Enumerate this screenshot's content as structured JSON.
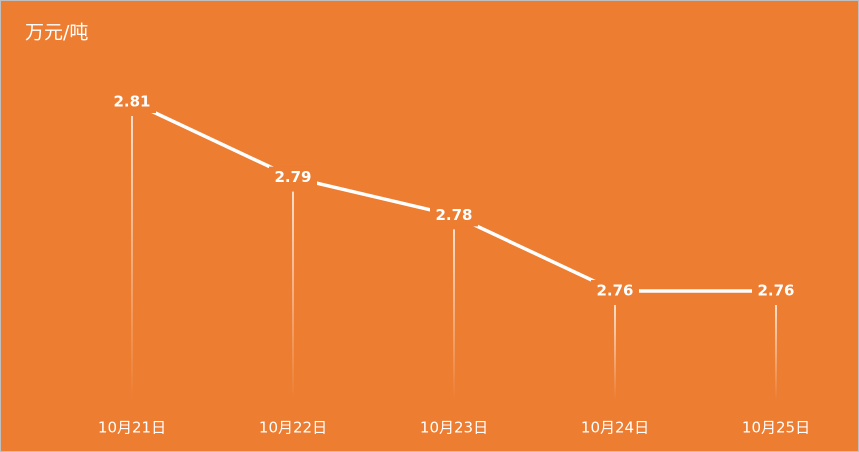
{
  "chart_data": {
    "type": "line",
    "title": "万元/吨",
    "categories": [
      "10月21日",
      "10月22日",
      "10月23日",
      "10月24日",
      "10月25日"
    ],
    "values": [
      2.81,
      2.79,
      2.78,
      2.76,
      2.76
    ],
    "color": "#ffffff"
  }
}
